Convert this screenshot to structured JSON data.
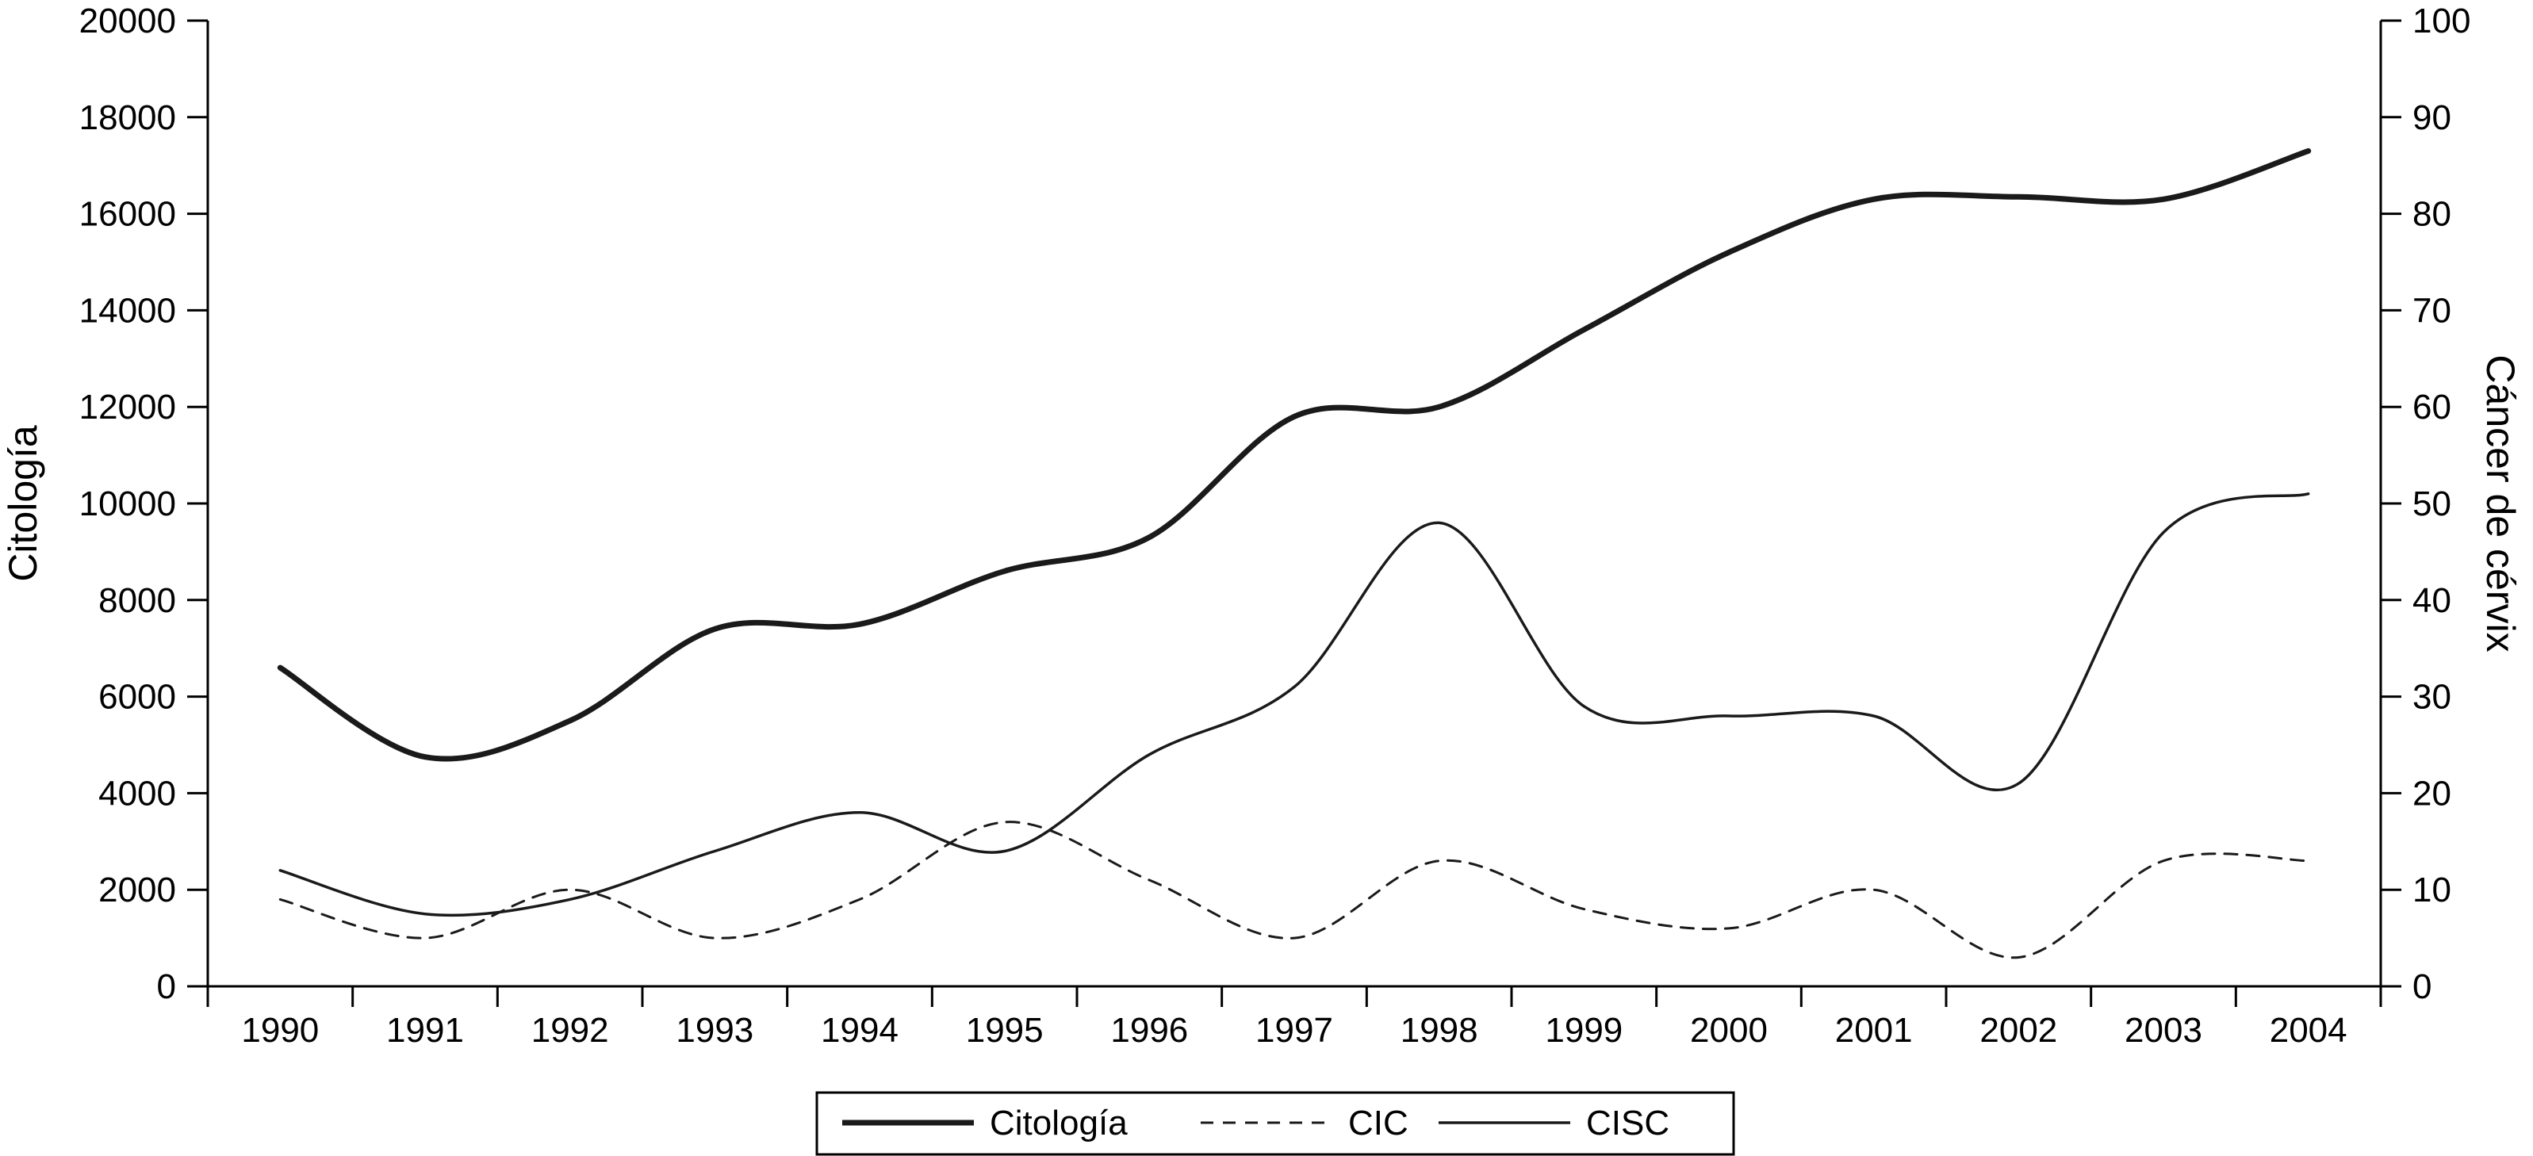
{
  "chart_data": {
    "type": "line",
    "title": "",
    "x": [
      "1990",
      "1991",
      "1992",
      "1993",
      "1994",
      "1995",
      "1996",
      "1997",
      "1998",
      "1999",
      "2000",
      "2001",
      "2002",
      "2003",
      "2004"
    ],
    "ylabel_left": "Citología",
    "ylabel_right": "Cáncer de cérvix",
    "ylim_left": [
      0,
      20000
    ],
    "ylim_right": [
      0,
      100
    ],
    "yticks_left": [
      "0",
      "2000",
      "4000",
      "6000",
      "8000",
      "10000",
      "12000",
      "14000",
      "16000",
      "18000",
      "20000"
    ],
    "yticks_right": [
      "0",
      "10",
      "20",
      "30",
      "40",
      "50",
      "60",
      "70",
      "80",
      "90",
      "100"
    ],
    "grid": false,
    "legend_position": "bottom-center",
    "series": [
      {
        "name": "Citología",
        "axis": "left",
        "style": "thick-solid",
        "color": "#1a1a1a",
        "values": [
          6600,
          4750,
          5500,
          7400,
          7500,
          8600,
          9300,
          11800,
          12000,
          13600,
          15200,
          16300,
          16350,
          16300,
          17300
        ]
      },
      {
        "name": "CIC",
        "axis": "right",
        "style": "dashed",
        "color": "#1a1a1a",
        "values": [
          9,
          5,
          10,
          5,
          9,
          17,
          11,
          5,
          13,
          8,
          6,
          10,
          3,
          13,
          13
        ]
      },
      {
        "name": "CISC",
        "axis": "right",
        "style": "thin-solid",
        "color": "#1a1a1a",
        "values": [
          12,
          7.5,
          9,
          14,
          18,
          14,
          24,
          31,
          48,
          29,
          28,
          28,
          21,
          47,
          51
        ]
      }
    ]
  }
}
